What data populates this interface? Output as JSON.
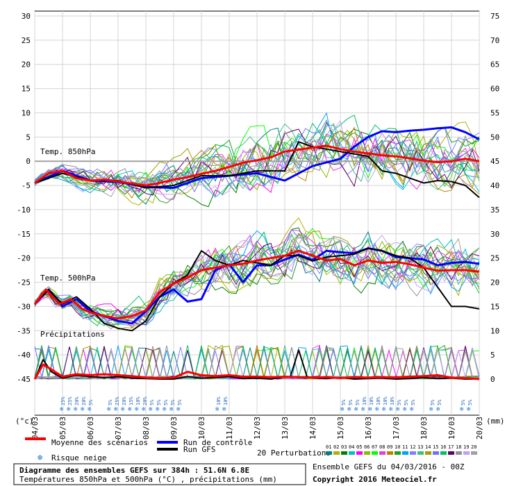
{
  "chart_data": {
    "type": "line",
    "x_ticks": [
      "04/03",
      "05/03",
      "06/03",
      "07/03",
      "08/03",
      "09/03",
      "10/03",
      "11/03",
      "12/03",
      "13/03",
      "14/03",
      "15/03",
      "16/03",
      "17/03",
      "18/03",
      "19/03",
      "20/03"
    ],
    "left_axis": {
      "unit": "(°c)",
      "ticks": [
        30,
        25,
        20,
        15,
        10,
        5,
        0,
        -5,
        -10,
        -15,
        -20,
        -25,
        -30,
        -35,
        -40,
        -45
      ],
      "ylim": [
        -45,
        30
      ]
    },
    "right_axis": {
      "unit": "(mm)",
      "ticks": [
        75,
        70,
        65,
        60,
        55,
        50,
        45,
        40,
        35,
        30,
        25,
        20,
        15,
        10,
        5,
        0
      ]
    },
    "section_labels": {
      "t850": "Temp. 850hPa",
      "t500": "Temp. 500hPa",
      "precip": "Précipitations"
    },
    "legend": {
      "mean": "Moyenne des scénarios",
      "control": "Run de contrôle",
      "gfs": "Run GFS",
      "snow": "Risque neige",
      "perturbations": "20 Perturbations",
      "perturbation_ids": [
        "01",
        "02",
        "03",
        "04",
        "05",
        "06",
        "07",
        "08",
        "09",
        "10",
        "11",
        "12",
        "13",
        "14",
        "15",
        "16",
        "17",
        "18",
        "19",
        "20"
      ]
    },
    "colors": {
      "mean": "#ff0000",
      "control": "#0000ff",
      "gfs": "#000000",
      "perturbations": [
        "#008080",
        "#b0b000",
        "#008000",
        "#00c0c0",
        "#ff00ff",
        "#80c000",
        "#00ff00",
        "#e040e0",
        "#c08000",
        "#20a020",
        "#00a0ff",
        "#8080ff",
        "#40c080",
        "#a0a000",
        "#7070ff",
        "#00c060",
        "#600060",
        "#909090",
        "#c0a0ff",
        "#a0a0a0"
      ]
    },
    "series": [
      {
        "name": "Moyenne des scénarios",
        "panel": "t850",
        "x": [
          0,
          0.5,
          1,
          1.5,
          2,
          2.5,
          3,
          3.5,
          4,
          4.5,
          5,
          5.5,
          6,
          6.5,
          7,
          7.5,
          8,
          8.5,
          9,
          9.5,
          10,
          10.5,
          11,
          11.5,
          12,
          12.5,
          13,
          13.5,
          14,
          14.5,
          15,
          15.5,
          16
        ],
        "y": [
          -4.5,
          -2.5,
          -2,
          -3.5,
          -4,
          -3.8,
          -4.2,
          -4.6,
          -5,
          -4.5,
          -3.8,
          -3.3,
          -2.6,
          -2,
          -1.2,
          -0.3,
          0.2,
          0.8,
          2,
          2.4,
          2.8,
          3.2,
          2.5,
          2,
          1.6,
          1.2,
          1,
          0.6,
          0.1,
          -0.2,
          0,
          0.5,
          0
        ]
      },
      {
        "name": "Run de contrôle",
        "panel": "t850",
        "x": [
          0,
          1,
          2,
          3,
          4,
          5,
          6,
          7,
          8,
          9,
          10,
          11,
          11.5,
          12,
          12.5,
          13,
          13.5,
          14,
          14.5,
          15,
          15.5,
          16
        ],
        "y": [
          -4.5,
          -2,
          -4,
          -4.3,
          -5.3,
          -5.5,
          -3.5,
          -3,
          -2.5,
          -4,
          -1,
          0.5,
          3,
          5,
          6.2,
          6,
          6.3,
          6.5,
          6.8,
          7,
          6,
          4.5
        ]
      },
      {
        "name": "Run GFS",
        "panel": "t850",
        "x": [
          0,
          1,
          2,
          3,
          4,
          5,
          6,
          7,
          8,
          9,
          9.5,
          10,
          11,
          12,
          12.5,
          13,
          13.5,
          14,
          14.5,
          15,
          15.5,
          16
        ],
        "y": [
          -4.5,
          -2.5,
          -4,
          -4,
          -5.5,
          -5,
          -3,
          -3,
          -2,
          -2,
          4,
          3,
          2,
          1,
          -2,
          -2.5,
          -3.5,
          -4.5,
          -4,
          -4.2,
          -5,
          -7.5
        ]
      },
      {
        "name": "Moyenne des scénarios",
        "panel": "t500",
        "x": [
          0,
          0.4,
          0.9,
          1.3,
          1.7,
          2,
          2.5,
          3,
          3.5,
          4,
          4.5,
          5,
          5.5,
          6,
          6.5,
          7,
          7.5,
          8,
          8.5,
          9,
          9.5,
          10,
          10.5,
          11,
          11.5,
          12,
          12.5,
          13,
          13.5,
          14,
          14.5,
          15,
          15.5,
          16
        ],
        "y": [
          -29.5,
          -26.5,
          -29.5,
          -28.5,
          -30.5,
          -31.2,
          -32,
          -32.5,
          -32,
          -30.8,
          -27,
          -25.3,
          -24,
          -22.5,
          -22,
          -21.5,
          -21.2,
          -20.5,
          -20,
          -19.5,
          -18.5,
          -19.5,
          -20.5,
          -20.2,
          -21.5,
          -20.5,
          -21,
          -20.8,
          -21.3,
          -22,
          -22.6,
          -22.5,
          -22.5,
          -22.8
        ]
      },
      {
        "name": "Run de contrôle",
        "panel": "t500",
        "x": [
          0,
          0.5,
          1,
          1.5,
          2,
          2.5,
          3,
          3.5,
          4,
          4.5,
          5,
          5.5,
          6,
          6.5,
          7,
          7.5,
          8,
          8.5,
          9,
          9.5,
          10,
          10.5,
          11,
          11.5,
          12,
          12.5,
          13,
          13.5,
          14,
          14.5,
          15,
          15.5,
          16
        ],
        "y": [
          -29.5,
          -26.5,
          -30,
          -28.5,
          -31,
          -32,
          -33,
          -33.5,
          -31,
          -28,
          -26.5,
          -29,
          -28.5,
          -22.5,
          -21.3,
          -25,
          -21.5,
          -21.5,
          -20.3,
          -19.3,
          -20.4,
          -18.5,
          -18.8,
          -19,
          -18,
          -18.5,
          -19.8,
          -20,
          -20.3,
          -21.5,
          -21,
          -20.8,
          -21.2
        ]
      },
      {
        "name": "Run GFS",
        "panel": "t500",
        "x": [
          0,
          0.5,
          1,
          1.5,
          2,
          2.5,
          3,
          3.5,
          4,
          4.5,
          5,
          5.5,
          6,
          6.5,
          7,
          7.5,
          8,
          8.5,
          9,
          9.5,
          10,
          10.5,
          11,
          11.5,
          12,
          12.5,
          13,
          13.5,
          14,
          14.5,
          15,
          15.5,
          16
        ],
        "y": [
          -29.5,
          -26.5,
          -29.5,
          -28,
          -30.5,
          -33.5,
          -34.5,
          -35,
          -33,
          -28,
          -25.2,
          -23.5,
          -18.5,
          -20.5,
          -21.5,
          -20.5,
          -21,
          -21.5,
          -19.5,
          -19.5,
          -20.6,
          -19.8,
          -19.5,
          -19.2,
          -18,
          -18.5,
          -19.5,
          -20,
          -22,
          -26,
          -30,
          -30,
          -30.5
        ]
      },
      {
        "name": "Moyenne des scénarios",
        "panel": "precip",
        "x": [
          0,
          0.3,
          0.6,
          1,
          1.5,
          2,
          2.5,
          3,
          3.5,
          4,
          4.5,
          5,
          5.5,
          6,
          6.5,
          7,
          7.5,
          8,
          8.5,
          9,
          9.5,
          10,
          10.5,
          11,
          11.5,
          12,
          12.5,
          13,
          13.5,
          14,
          14.5,
          15,
          15.5,
          16
        ],
        "y": [
          0,
          3,
          2,
          0.5,
          1,
          0.8,
          1,
          0.8,
          0.6,
          0.3,
          0.2,
          0.3,
          1.5,
          0.8,
          0.6,
          0.8,
          0.5,
          0.5,
          0.4,
          0.5,
          0.4,
          0.3,
          0.4,
          0.2,
          0.4,
          0.3,
          0.4,
          0.3,
          0.5,
          0.6,
          0.8,
          0.3,
          0.2,
          0
        ]
      },
      {
        "name": "Run GFS",
        "panel": "precip",
        "x": [
          0,
          0.3,
          0.6,
          1,
          1.5,
          2,
          2.5,
          3,
          3.5,
          4,
          4.5,
          5,
          5.5,
          6,
          6.5,
          7,
          7.5,
          8,
          8.5,
          9,
          9.2,
          9.5,
          9.8,
          10,
          10.5,
          11,
          11.5,
          12,
          12.5,
          13,
          13.5,
          14,
          14.5,
          15,
          15.5,
          16
        ],
        "y": [
          0,
          4,
          1.5,
          0.2,
          0.8,
          0.5,
          0.3,
          0.5,
          0.2,
          0.1,
          0,
          0,
          0.5,
          0.2,
          0.3,
          0.5,
          0.1,
          0.2,
          0,
          0.5,
          0.5,
          6,
          0.5,
          0.2,
          0.1,
          0.3,
          0,
          0.1,
          0.2,
          0,
          0.1,
          0.3,
          0.1,
          0.2,
          0,
          0
        ]
      }
    ],
    "snow_risk": [
      {
        "day": 1.0,
        "labels": [
          "25%",
          "25%",
          "20%",
          "20%",
          "5%"
        ]
      },
      {
        "day": 2.7,
        "labels": [
          "5%",
          "25%",
          "20%",
          "15%",
          "10%",
          "20%",
          "5%",
          "5%",
          "5%",
          "5%",
          "5%"
        ]
      },
      {
        "day": 6.6,
        "labels": [
          "10%",
          "10%"
        ]
      },
      {
        "day": 11.1,
        "labels": [
          "5%",
          "5%",
          "5%",
          "10%",
          "10%",
          "10%",
          "10%",
          "10%",
          "5%",
          "5%",
          "5%"
        ]
      },
      {
        "day": 14.3,
        "labels": [
          "5%",
          "5%"
        ]
      },
      {
        "day": 15.4,
        "labels": [
          "5%",
          "5%"
        ]
      }
    ]
  },
  "footer": {
    "title": "Diagramme des ensembles GEFS sur 384h : 51.6N 6.8E",
    "subtitle": "Températures 850hPa et 500hPa (°C) , précipitations (mm)",
    "run_info": "Ensemble GEFS du 04/03/2016 - 00Z",
    "copyright": "Copyright 2016 Meteociel.fr"
  }
}
